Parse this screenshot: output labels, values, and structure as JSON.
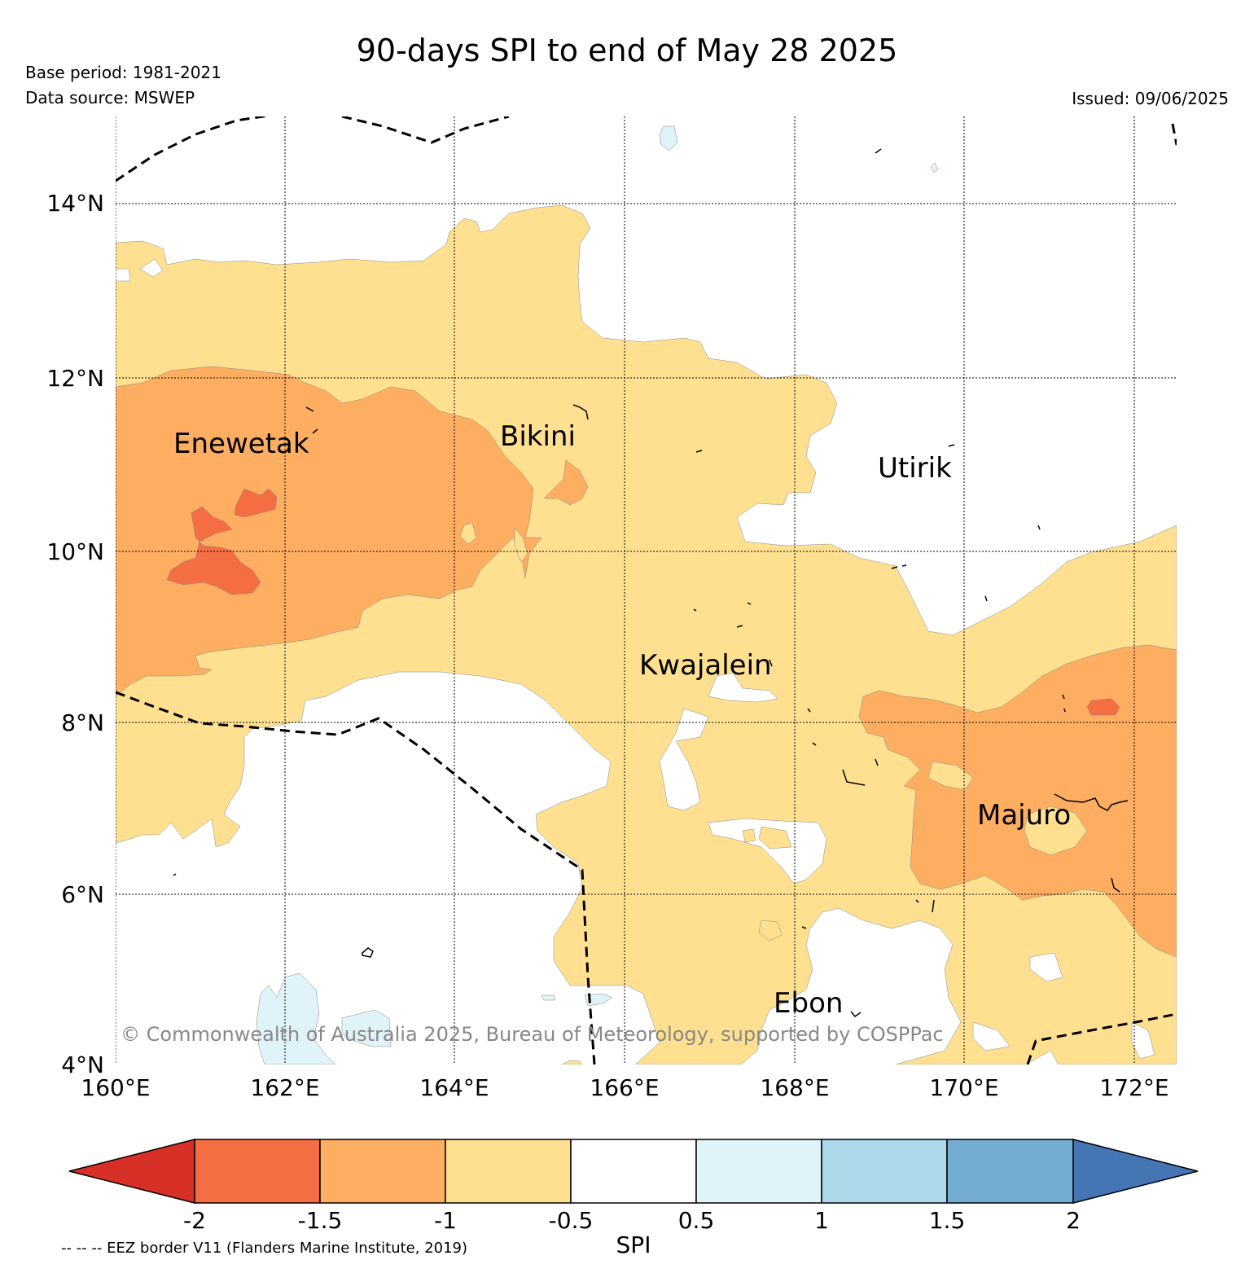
{
  "title": "90-days SPI to end of May 28 2025",
  "base_period": "Base period: 1981-2021",
  "data_source": "Data source: MSWEP",
  "issued": "Issued: 09/06/2025",
  "copyright": "© Commonwealth of Australia 2025, Bureau of Meteorology, supported by COSPPac",
  "eez_note": "-- -- -- EEZ border V11 (Flanders Marine Institute, 2019)",
  "map": {
    "lat_labels": [
      "14°N",
      "12°N",
      "10°N",
      "8°N",
      "6°N",
      "4°N"
    ],
    "lon_labels": [
      "160°E",
      "162°E",
      "164°E",
      "166°E",
      "168°E",
      "170°E",
      "172°E"
    ],
    "places": [
      {
        "name": "Enewetak"
      },
      {
        "name": "Bikini"
      },
      {
        "name": "Utirik"
      },
      {
        "name": "Kwajalein"
      },
      {
        "name": "Majuro"
      },
      {
        "name": "Ebon"
      }
    ],
    "colors": {
      "lt_-2": "#d73027",
      "-2_-1.5": "#f46d43",
      "-1.5_-1": "#fdae61",
      "-1_-0.5": "#fee090",
      "-0.5_0.5": "#ffffff",
      "0.5_1": "#e0f3f8",
      "1_1.5": "#abd9e9",
      "1.5_2": "#74add1",
      "gt_2": "#4575b4"
    }
  },
  "colorbar": {
    "label": "SPI",
    "ticks": [
      "-2",
      "-1.5",
      "-1",
      "-0.5",
      "0.5",
      "1",
      "1.5",
      "2"
    ],
    "colors": [
      "#d73027",
      "#f46d43",
      "#fdae61",
      "#fee090",
      "#ffffff",
      "#e0f3f8",
      "#abd9e9",
      "#74add1",
      "#4575b4"
    ]
  }
}
